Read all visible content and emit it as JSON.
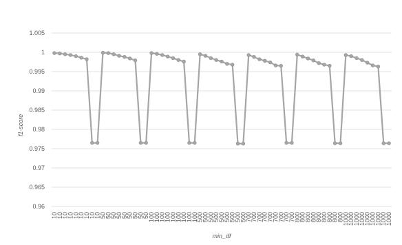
{
  "chart_data": {
    "type": "line",
    "title": "",
    "xlabel": "min_df",
    "ylabel": "f1-score",
    "ylim": [
      0.96,
      1.005
    ],
    "ytick_step": 0.005,
    "yticks": [
      "0.96",
      "0.965",
      "0.97",
      "0.975",
      "0.98",
      "0.985",
      "0.99",
      "0.995",
      "1",
      "1.005"
    ],
    "grid": true,
    "legend": "none",
    "line_color": "#a6a6a6",
    "marker_color": "#a6a6a6",
    "categories": [
      "10",
      "10",
      "10",
      "10",
      "10",
      "10",
      "10",
      "10",
      "10",
      "50",
      "50",
      "50",
      "50",
      "50",
      "50",
      "50",
      "50",
      "50",
      "100",
      "100",
      "100",
      "100",
      "100",
      "100",
      "100",
      "100",
      "100",
      "500",
      "500",
      "500",
      "500",
      "500",
      "500",
      "500",
      "500",
      "500",
      "700",
      "700",
      "700",
      "700",
      "700",
      "700",
      "700",
      "700",
      "700",
      "800",
      "800",
      "800",
      "800",
      "800",
      "800",
      "800",
      "800",
      "800",
      "1000",
      "1000",
      "1000",
      "1000",
      "1000",
      "1000",
      "1000",
      "1000",
      "1000"
    ],
    "series": [
      {
        "values": [
          0.9998,
          0.9997,
          0.9995,
          0.9993,
          0.999,
          0.9986,
          0.9982,
          0.9765,
          0.9765,
          0.9999,
          0.9998,
          0.9995,
          0.9991,
          0.9988,
          0.9984,
          0.9979,
          0.9765,
          0.9765,
          0.9998,
          0.9996,
          0.9993,
          0.9989,
          0.9985,
          0.998,
          0.9976,
          0.9765,
          0.9765,
          0.9995,
          0.9991,
          0.9985,
          0.998,
          0.9976,
          0.997,
          0.9968,
          0.9763,
          0.9763,
          0.9993,
          0.9988,
          0.9982,
          0.9978,
          0.9974,
          0.9966,
          0.9965,
          0.9765,
          0.9765,
          0.9994,
          0.9989,
          0.9984,
          0.9979,
          0.9972,
          0.9968,
          0.9965,
          0.9764,
          0.9764,
          0.9993,
          0.999,
          0.9985,
          0.998,
          0.9973,
          0.9966,
          0.9963,
          0.9764,
          0.9764
        ]
      }
    ]
  }
}
